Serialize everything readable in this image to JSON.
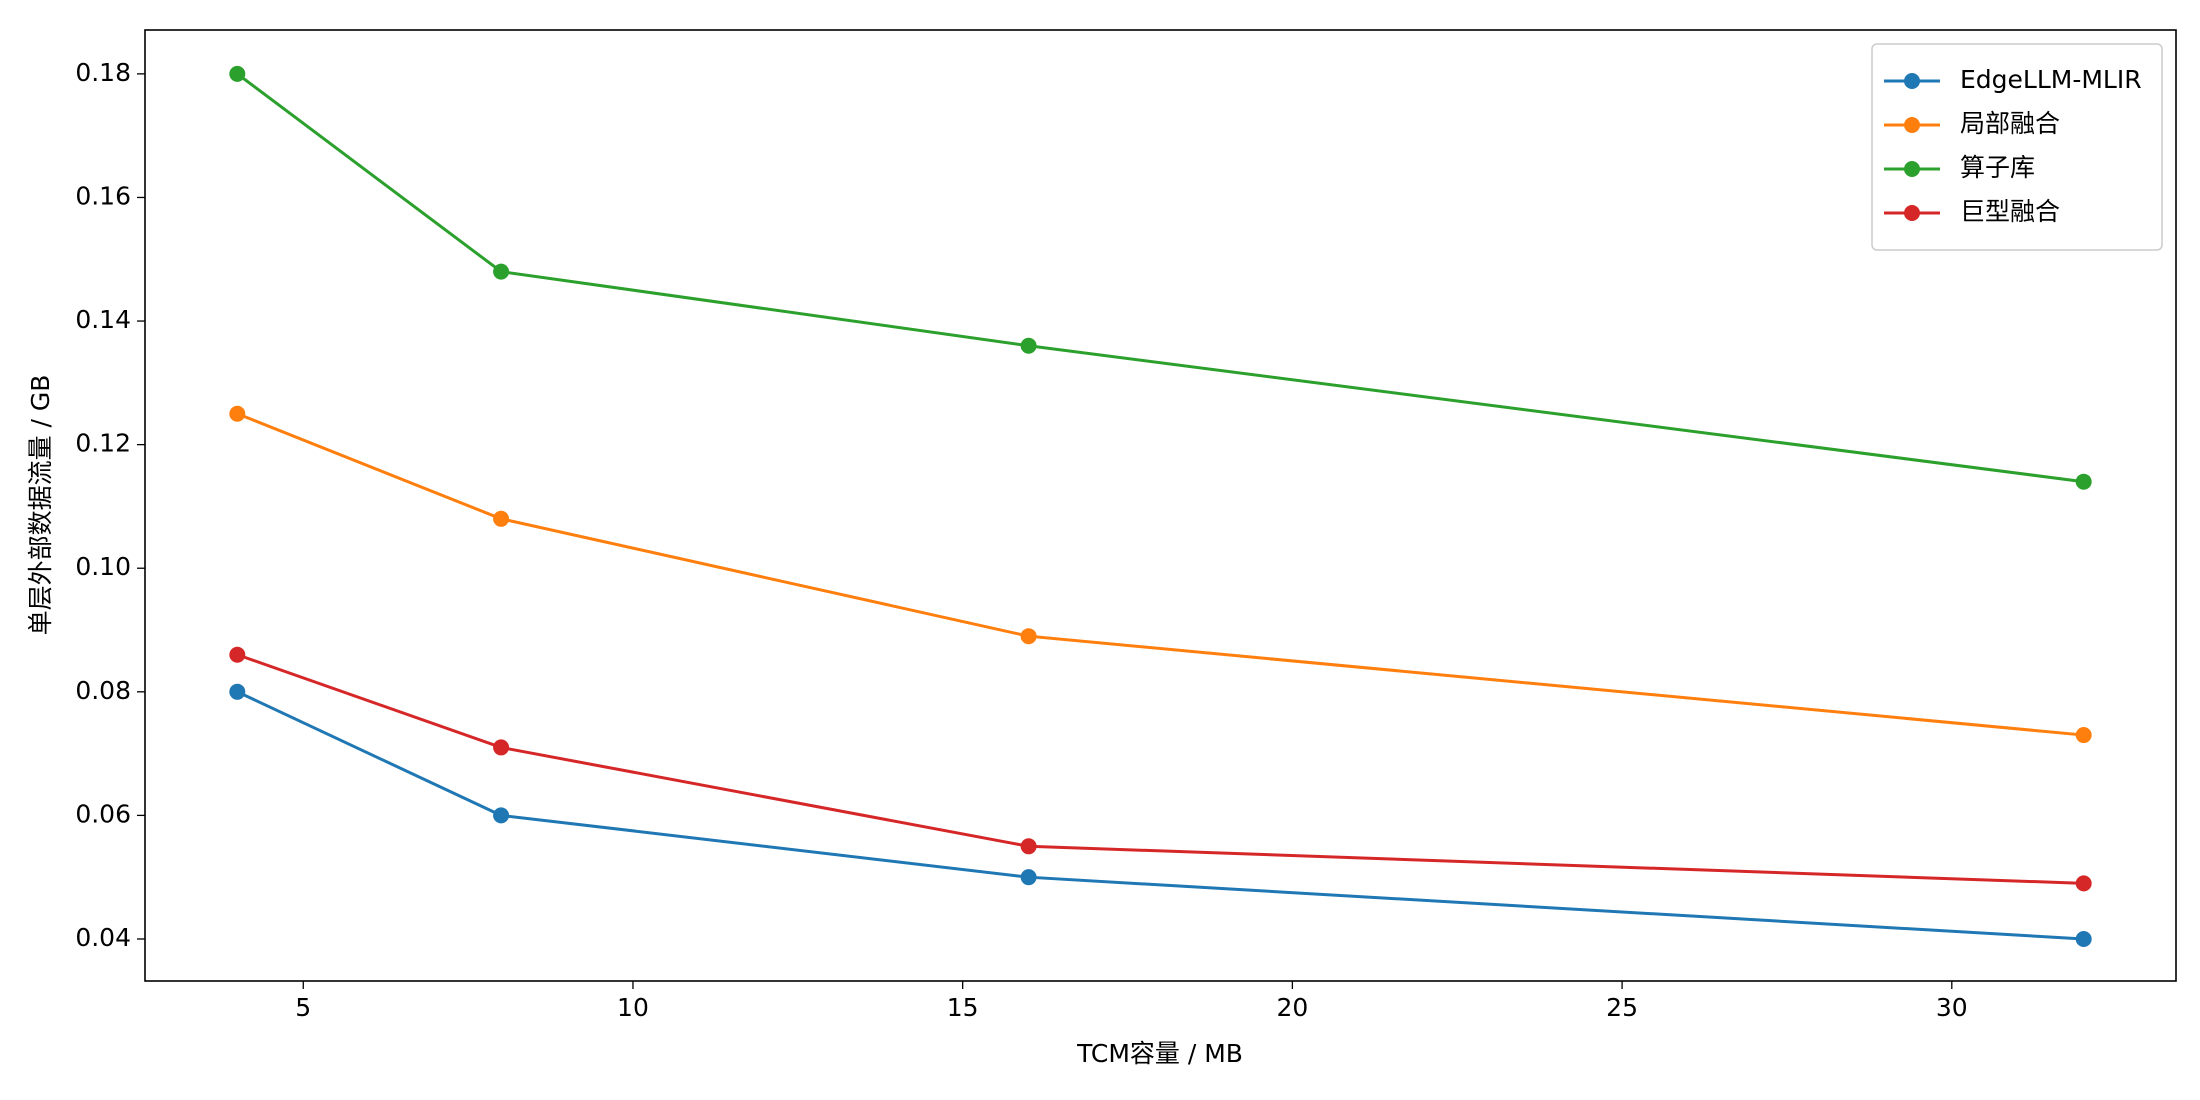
{
  "chart_data": {
    "type": "line",
    "xlabel": "TCM容量 / MB",
    "ylabel": "单层外部数据流量 / GB",
    "x": [
      4,
      8,
      16,
      32
    ],
    "series": [
      {
        "name": "EdgeLLM-MLIR",
        "color": "#1f77b4",
        "values": [
          0.08,
          0.06,
          0.05,
          0.04
        ]
      },
      {
        "name": "局部融合",
        "color": "#ff7f0e",
        "values": [
          0.125,
          0.108,
          0.089,
          0.073
        ]
      },
      {
        "name": "算子库",
        "color": "#2ca02c",
        "values": [
          0.18,
          0.148,
          0.136,
          0.114
        ]
      },
      {
        "name": "巨型融合",
        "color": "#d62728",
        "values": [
          0.086,
          0.071,
          0.055,
          0.049
        ]
      }
    ],
    "xlim": [
      2.6,
      33.4
    ],
    "ylim": [
      0.0332,
      0.1871
    ],
    "xticks": [
      5,
      10,
      15,
      20,
      25,
      30
    ],
    "yticks": [
      0.04,
      0.06,
      0.08,
      {
        "value": 0.1,
        "label": "0.10"
      },
      0.12,
      0.14,
      0.16,
      0.18
    ],
    "legend": "upper right",
    "grid": false
  }
}
